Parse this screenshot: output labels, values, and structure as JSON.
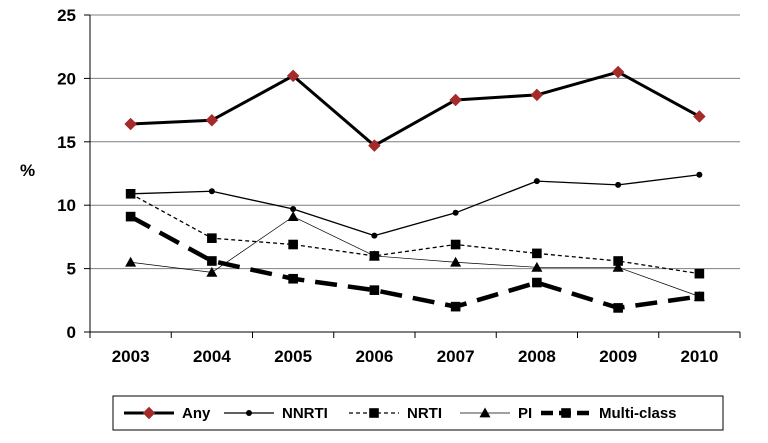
{
  "chart_data": {
    "type": "line",
    "title": "",
    "xlabel": "",
    "ylabel": "%",
    "ylim": [
      0,
      25
    ],
    "yticks": [
      0,
      5,
      10,
      15,
      20,
      25
    ],
    "categories": [
      "2003",
      "2004",
      "2005",
      "2006",
      "2007",
      "2008",
      "2009",
      "2010"
    ],
    "grid": true,
    "legend_position": "bottom",
    "series": [
      {
        "name": "Any",
        "values": [
          16.4,
          16.7,
          20.2,
          14.7,
          18.3,
          18.7,
          20.5,
          17.0
        ],
        "color": "#000000",
        "marker": "diamond",
        "marker_color": "#a52a2a",
        "style": "solid-thick"
      },
      {
        "name": "NNRTI",
        "values": [
          10.9,
          11.1,
          9.7,
          7.6,
          9.4,
          11.9,
          11.6,
          12.4
        ],
        "color": "#000000",
        "marker": "circle",
        "style": "solid"
      },
      {
        "name": "NRTI",
        "values": [
          10.9,
          7.4,
          6.9,
          6.0,
          6.9,
          6.2,
          5.6,
          4.6
        ],
        "color": "#000000",
        "marker": "square",
        "style": "dotted"
      },
      {
        "name": "PI",
        "values": [
          5.5,
          4.7,
          9.1,
          6.0,
          5.5,
          5.1,
          5.1,
          2.8
        ],
        "color": "#000000",
        "marker": "triangle",
        "style": "thin"
      },
      {
        "name": "Multi-class",
        "values": [
          9.1,
          5.6,
          4.2,
          3.3,
          2.0,
          3.9,
          1.9,
          2.8
        ],
        "color": "#000000",
        "marker": "square",
        "style": "dashed-thick"
      }
    ]
  }
}
